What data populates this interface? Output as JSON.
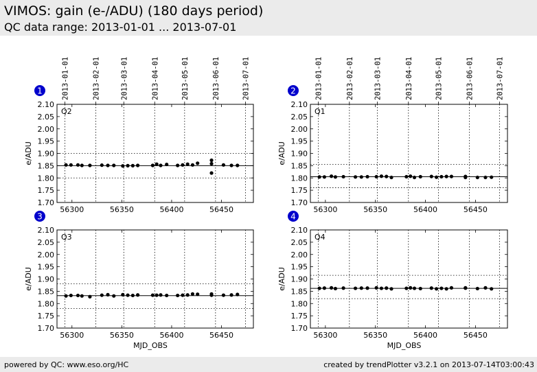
{
  "header": {
    "title": "VIMOS: gain (e-/ADU) (180 days period)",
    "subtitle": "QC data range: 2013-01-01 ... 2013-07-01"
  },
  "footer": {
    "left": "powered by QC: www.eso.org/HC",
    "right": "created by trendPlotter v3.2.1 on 2013-07-14T03:00:43"
  },
  "colors": {
    "badge": "#0000cc",
    "points": "#000000",
    "header_bg": "#ebebeb"
  },
  "chart_data": [
    {
      "type": "scatter",
      "badge": "1",
      "label": "Q2",
      "ylabel": "e/ADU",
      "xlabel": "",
      "xlim": [
        56285,
        56482
      ],
      "ylim": [
        1.7,
        2.1
      ],
      "yticks": [
        "1.70",
        "1.75",
        "1.80",
        "1.85",
        "1.90",
        "1.95",
        "2.00",
        "2.05",
        "2.10"
      ],
      "xticks": [
        56300,
        56350,
        56400,
        56450
      ],
      "xtick_labels": [
        "56300",
        "56350",
        "56400",
        "56450"
      ],
      "date_ticks": [
        "2013-01-01",
        "2013-02-01",
        "2013-03-01",
        "2013-04-01",
        "2013-05-01",
        "2013-06-01",
        "2013-07-01"
      ],
      "date_mjd": [
        56293,
        56324,
        56352,
        56383,
        56413,
        56444,
        56474
      ],
      "show_date_labels": true,
      "mean": 1.85,
      "band": [
        1.8,
        1.9
      ],
      "x": [
        56294,
        56299,
        56306,
        56310,
        56318,
        56330,
        56336,
        56342,
        56351,
        56356,
        56361,
        56366,
        56381,
        56385,
        56389,
        56395,
        56406,
        56411,
        56416,
        56421,
        56426,
        56440,
        56440,
        56440,
        56452,
        56460,
        56466
      ],
      "y": [
        1.853,
        1.853,
        1.853,
        1.851,
        1.851,
        1.852,
        1.851,
        1.851,
        1.849,
        1.85,
        1.85,
        1.851,
        1.851,
        1.856,
        1.851,
        1.855,
        1.851,
        1.853,
        1.856,
        1.853,
        1.86,
        1.872,
        1.858,
        1.82,
        1.853,
        1.851,
        1.851
      ]
    },
    {
      "type": "scatter",
      "badge": "2",
      "label": "Q1",
      "ylabel": "e/ADU",
      "xlabel": "",
      "xlim": [
        56285,
        56482
      ],
      "ylim": [
        1.7,
        2.1
      ],
      "yticks": [
        "1.70",
        "1.75",
        "1.80",
        "1.85",
        "1.90",
        "1.95",
        "2.00",
        "2.05",
        "2.10"
      ],
      "xticks": [
        56300,
        56350,
        56400,
        56450
      ],
      "xtick_labels": [
        "56300",
        "56350",
        "56400",
        "56450"
      ],
      "date_ticks": [
        "2013-01-01",
        "2013-02-01",
        "2013-03-01",
        "2013-04-01",
        "2013-05-01",
        "2013-06-01",
        "2013-07-01"
      ],
      "date_mjd": [
        56293,
        56324,
        56352,
        56383,
        56413,
        56444,
        56474
      ],
      "show_date_labels": true,
      "mean": 1.805,
      "band": [
        1.76,
        1.855
      ],
      "x": [
        56294,
        56299,
        56306,
        56310,
        56318,
        56330,
        56336,
        56342,
        56351,
        56356,
        56361,
        56366,
        56381,
        56385,
        56389,
        56395,
        56406,
        56411,
        56416,
        56421,
        56426,
        56440,
        56440,
        56452,
        56460,
        56466
      ],
      "y": [
        1.804,
        1.804,
        1.807,
        1.804,
        1.805,
        1.804,
        1.804,
        1.805,
        1.805,
        1.807,
        1.806,
        1.802,
        1.805,
        1.807,
        1.802,
        1.805,
        1.806,
        1.803,
        1.805,
        1.806,
        1.806,
        1.806,
        1.802,
        1.802,
        1.802,
        1.803
      ]
    },
    {
      "type": "scatter",
      "badge": "3",
      "label": "Q3",
      "ylabel": "e/ADU",
      "xlabel": "MJD_OBS",
      "xlim": [
        56285,
        56482
      ],
      "ylim": [
        1.7,
        2.1
      ],
      "yticks": [
        "1.70",
        "1.75",
        "1.80",
        "1.85",
        "1.90",
        "1.95",
        "2.00",
        "2.05",
        "2.10"
      ],
      "xticks": [
        56300,
        56350,
        56400,
        56450
      ],
      "xtick_labels": [
        "56300",
        "56350",
        "56400",
        "56450"
      ],
      "date_ticks": [],
      "date_mjd": [
        56293,
        56324,
        56352,
        56383,
        56413,
        56444,
        56474
      ],
      "show_date_labels": false,
      "mean": 1.832,
      "band": [
        1.78,
        1.88
      ],
      "x": [
        56294,
        56299,
        56306,
        56310,
        56318,
        56330,
        56336,
        56342,
        56351,
        56356,
        56361,
        56366,
        56381,
        56385,
        56389,
        56395,
        56406,
        56411,
        56416,
        56421,
        56426,
        56440,
        56440,
        56452,
        56460,
        56466
      ],
      "y": [
        1.831,
        1.833,
        1.833,
        1.831,
        1.828,
        1.834,
        1.836,
        1.831,
        1.836,
        1.834,
        1.833,
        1.835,
        1.834,
        1.834,
        1.835,
        1.833,
        1.833,
        1.834,
        1.835,
        1.839,
        1.838,
        1.839,
        1.834,
        1.834,
        1.835,
        1.837
      ]
    },
    {
      "type": "scatter",
      "badge": "4",
      "label": "Q4",
      "ylabel": "e/ADU",
      "xlabel": "MJD_OBS",
      "xlim": [
        56285,
        56482
      ],
      "ylim": [
        1.7,
        2.1
      ],
      "yticks": [
        "1.70",
        "1.75",
        "1.80",
        "1.85",
        "1.90",
        "1.95",
        "2.00",
        "2.05",
        "2.10"
      ],
      "xticks": [
        56300,
        56350,
        56400,
        56450
      ],
      "xtick_labels": [
        "56300",
        "56350",
        "56400",
        "56450"
      ],
      "date_ticks": [],
      "date_mjd": [
        56293,
        56324,
        56352,
        56383,
        56413,
        56444,
        56474
      ],
      "show_date_labels": false,
      "mean": 1.862,
      "band": [
        1.82,
        1.915
      ],
      "x": [
        56294,
        56299,
        56306,
        56310,
        56318,
        56330,
        56336,
        56342,
        56351,
        56356,
        56361,
        56366,
        56381,
        56385,
        56389,
        56395,
        56406,
        56411,
        56416,
        56421,
        56426,
        56440,
        56440,
        56452,
        56460,
        56466
      ],
      "y": [
        1.862,
        1.863,
        1.864,
        1.861,
        1.863,
        1.862,
        1.863,
        1.863,
        1.864,
        1.862,
        1.863,
        1.86,
        1.862,
        1.864,
        1.862,
        1.861,
        1.863,
        1.86,
        1.862,
        1.86,
        1.864,
        1.864,
        1.863,
        1.861,
        1.864,
        1.86
      ]
    }
  ]
}
